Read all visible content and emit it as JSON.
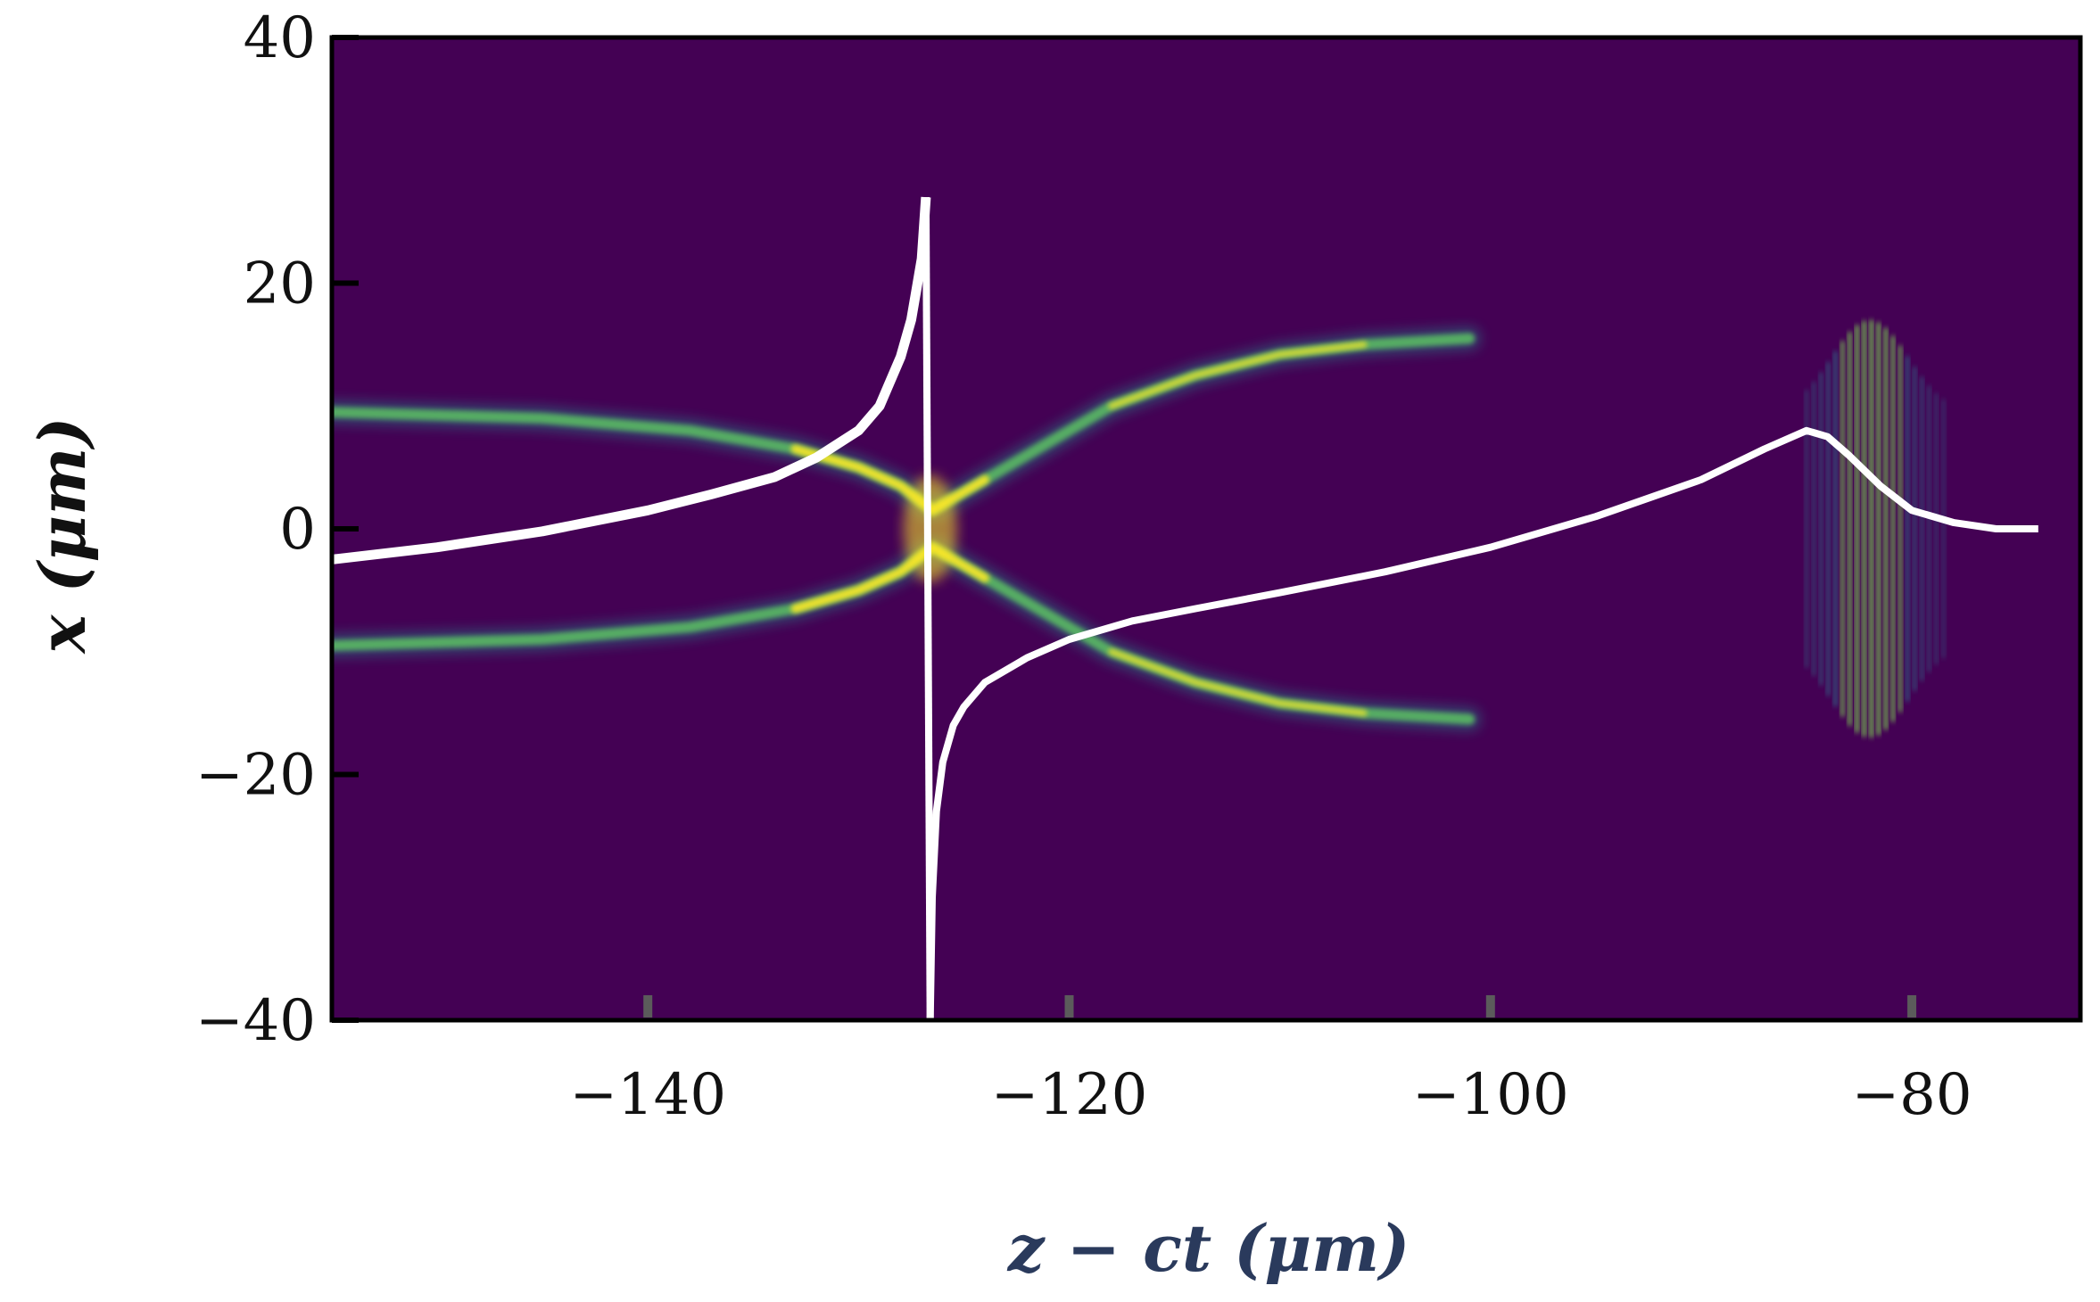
{
  "chart_data": {
    "type": "heatmap",
    "title": "",
    "xlabel": "z − ct (μm)",
    "ylabel": "x (μm)",
    "xlim": [
      -155,
      -72
    ],
    "ylim": [
      -40,
      40
    ],
    "xticks": [
      -140,
      -120,
      -100,
      -80
    ],
    "yticks": [
      -40,
      -20,
      0,
      20,
      40
    ],
    "xtick_labels": [
      "−140",
      "−120",
      "−100",
      "−80"
    ],
    "ytick_labels": [
      "−40",
      "−20",
      "0",
      "20",
      "40"
    ],
    "colormap": "viridis",
    "background_color": "#440154",
    "grid": false,
    "legend": "none",
    "line_series": {
      "color": "#ffffff",
      "left_branch": {
        "x": [
          -155,
          -150,
          -145,
          -140,
          -137,
          -134,
          -132,
          -130,
          -129,
          -128,
          -127.5,
          -127.2,
          -127,
          -126.8
        ],
        "y": [
          -2.5,
          -1.5,
          -0.2,
          1.5,
          2.8,
          4.2,
          5.8,
          8,
          10,
          14,
          17,
          20,
          22,
          27
        ]
      },
      "right_branch": {
        "x": [
          -126.6,
          -126.5,
          -126.3,
          -126,
          -125.5,
          -125,
          -124,
          -122,
          -120,
          -117,
          -114,
          -110,
          -105,
          -100,
          -95,
          -90,
          -87,
          -85,
          -84,
          -83,
          -81.5,
          -80,
          -78,
          -76,
          -74
        ],
        "y": [
          -40,
          -30,
          -23,
          -19,
          -16,
          -14.5,
          -12.5,
          -10.5,
          -9,
          -7.5,
          -6.5,
          -5.2,
          -3.5,
          -1.5,
          1,
          4,
          6.5,
          8,
          7.5,
          6,
          3.5,
          1.5,
          0.5,
          0,
          0
        ]
      }
    },
    "density_features": {
      "upper_branch": {
        "x": [
          -155,
          -145,
          -138,
          -133,
          -130,
          -128,
          -126.5,
          -124,
          -121,
          -118,
          -114,
          -110,
          -106,
          -101
        ],
        "y": [
          9.5,
          9,
          8,
          6.5,
          5,
          3.5,
          1.5,
          4,
          7,
          10,
          12.5,
          14.2,
          15,
          15.5
        ]
      },
      "lower_branch": {
        "x": [
          -155,
          -145,
          -138,
          -133,
          -130,
          -128,
          -126.5,
          -124,
          -121,
          -118,
          -114,
          -110,
          -106,
          -101
        ],
        "y": [
          -9.5,
          -9,
          -8,
          -6.5,
          -5,
          -3.5,
          -1.5,
          -4,
          -7,
          -10,
          -12.5,
          -14.2,
          -15,
          -15.5
        ]
      },
      "laser_pulse": {
        "x_center": -82,
        "x_range": [
          -85,
          -78.5
        ],
        "y_range": [
          -17,
          17
        ],
        "fringe_count": 20
      }
    }
  }
}
